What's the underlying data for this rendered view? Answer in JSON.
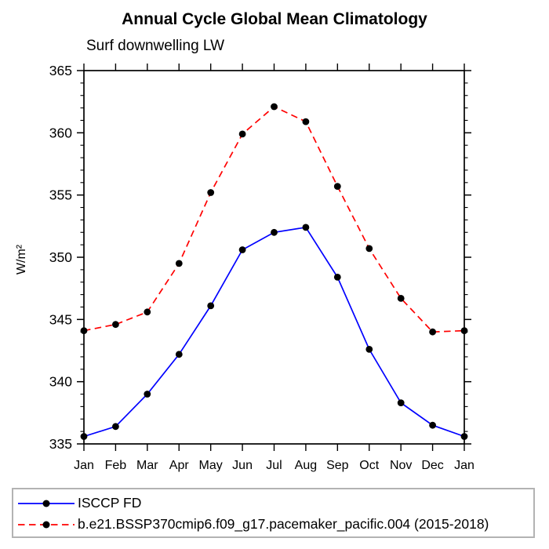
{
  "title": "Annual Cycle Global Mean Climatology",
  "subtitle": "Surf downwelling LW",
  "chart_data": {
    "type": "line",
    "x_categories": [
      "Jan",
      "Feb",
      "Mar",
      "Apr",
      "May",
      "Jun",
      "Jul",
      "Aug",
      "Sep",
      "Oct",
      "Nov",
      "Dec",
      "Jan"
    ],
    "ylabel": "W/m²",
    "ylim": [
      335,
      365
    ],
    "ytick_major_step": 5,
    "ytick_minor_step": 1,
    "grid": false,
    "legend_position": "bottom-left",
    "axis_color": "#000000",
    "marker": "filled-circle",
    "marker_color": "#000000",
    "series": [
      {
        "name": "ISCCP FD",
        "color": "#0000ff",
        "line_style": "solid",
        "values": [
          335.6,
          336.4,
          339.0,
          342.2,
          346.1,
          350.6,
          352.0,
          352.4,
          348.4,
          342.6,
          338.3,
          336.5,
          335.6
        ]
      },
      {
        "name": "b.e21.BSSP370cmip6.f09_g17.pacemaker_pacific.004 (2015-2018)",
        "color": "#ff0000",
        "line_style": "dashed",
        "values": [
          344.1,
          344.6,
          345.6,
          349.5,
          355.2,
          359.9,
          362.1,
          360.9,
          355.7,
          350.7,
          346.7,
          344.0,
          344.1
        ]
      }
    ]
  }
}
